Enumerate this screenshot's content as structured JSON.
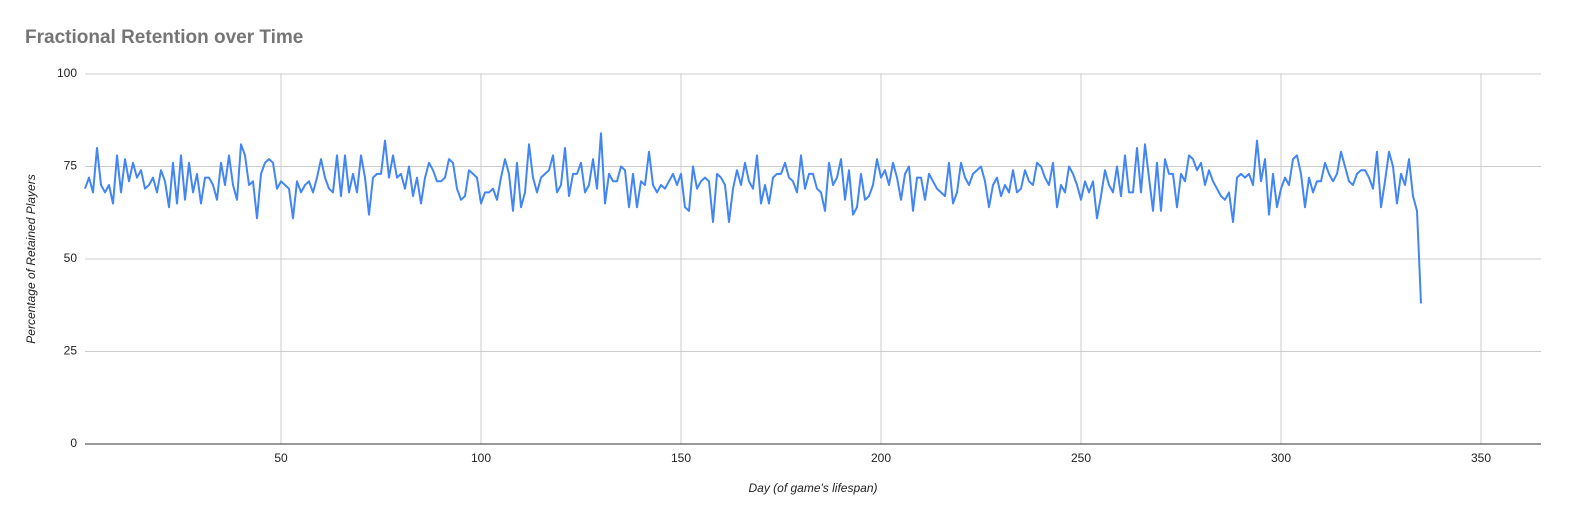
{
  "chart_data": {
    "type": "line",
    "title": "Fractional Retention over Time",
    "x_label": "Day (of game's lifespan)",
    "y_label": "Percentage of Retained Players",
    "color": "#4285f4",
    "grid": true,
    "xlim": [
      1,
      365
    ],
    "xticks": [
      50,
      100,
      150,
      200,
      250,
      300,
      350
    ],
    "ylim": [
      0,
      100
    ],
    "yticks": [
      0,
      25,
      50,
      75,
      100
    ],
    "x": [
      1,
      2,
      3,
      4,
      5,
      6,
      7,
      8,
      9,
      10,
      11,
      12,
      13,
      14,
      15,
      16,
      17,
      18,
      19,
      20,
      21,
      22,
      23,
      24,
      25,
      26,
      27,
      28,
      29,
      30,
      31,
      32,
      33,
      34,
      35,
      36,
      37,
      38,
      39,
      40,
      41,
      42,
      43,
      44,
      45,
      46,
      47,
      48,
      49,
      50,
      51,
      52,
      53,
      54,
      55,
      56,
      57,
      58,
      59,
      60,
      61,
      62,
      63,
      64,
      65,
      66,
      67,
      68,
      69,
      70,
      71,
      72,
      73,
      74,
      75,
      76,
      77,
      78,
      79,
      80,
      81,
      82,
      83,
      84,
      85,
      86,
      87,
      88,
      89,
      90,
      91,
      92,
      93,
      94,
      95,
      96,
      97,
      98,
      99,
      100,
      101,
      102,
      103,
      104,
      105,
      106,
      107,
      108,
      109,
      110,
      111,
      112,
      113,
      114,
      115,
      116,
      117,
      118,
      119,
      120,
      121,
      122,
      123,
      124,
      125,
      126,
      127,
      128,
      129,
      130,
      131,
      132,
      133,
      134,
      135,
      136,
      137,
      138,
      139,
      140,
      141,
      142,
      143,
      144,
      145,
      146,
      147,
      148,
      149,
      150,
      151,
      152,
      153,
      154,
      155,
      156,
      157,
      158,
      159,
      160,
      161,
      162,
      163,
      164,
      165,
      166,
      167,
      168,
      169,
      170,
      171,
      172,
      173,
      174,
      175,
      176,
      177,
      178,
      179,
      180,
      181,
      182,
      183,
      184,
      185,
      186,
      187,
      188,
      189,
      190,
      191,
      192,
      193,
      194,
      195,
      196,
      197,
      198,
      199,
      200,
      201,
      202,
      203,
      204,
      205,
      206,
      207,
      208,
      209,
      210,
      211,
      212,
      213,
      214,
      215,
      216,
      217,
      218,
      219,
      220,
      221,
      222,
      223,
      224,
      225,
      226,
      227,
      228,
      229,
      230,
      231,
      232,
      233,
      234,
      235,
      236,
      237,
      238,
      239,
      240,
      241,
      242,
      243,
      244,
      245,
      246,
      247,
      248,
      249,
      250,
      251,
      252,
      253,
      254,
      255,
      256,
      257,
      258,
      259,
      260,
      261,
      262,
      263,
      264,
      265,
      266,
      267,
      268,
      269,
      270,
      271,
      272,
      273,
      274,
      275,
      276,
      277,
      278,
      279,
      280,
      281,
      282,
      283,
      284,
      285,
      286,
      287,
      288,
      289,
      290,
      291,
      292,
      293,
      294,
      295,
      296,
      297,
      298,
      299,
      300,
      301,
      302,
      303,
      304,
      305,
      306,
      307,
      308,
      309,
      310,
      311,
      312,
      313,
      314,
      315,
      316,
      317,
      318,
      319,
      320,
      321,
      322,
      323,
      324,
      325,
      326,
      327,
      328,
      329,
      330,
      331,
      332,
      333,
      334,
      335
    ],
    "values": [
      69,
      72,
      68,
      80,
      70,
      68,
      70,
      65,
      78,
      68,
      77,
      71,
      76,
      72,
      74,
      69,
      70,
      72,
      68,
      74,
      71,
      64,
      76,
      65,
      78,
      66,
      76,
      68,
      73,
      65,
      72,
      72,
      70,
      66,
      76,
      70,
      78,
      70,
      66,
      81,
      78,
      70,
      71,
      61,
      73,
      76,
      77,
      76,
      69,
      71,
      70,
      69,
      61,
      71,
      68,
      70,
      71,
      68,
      72,
      77,
      72,
      69,
      68,
      78,
      67,
      78,
      68,
      73,
      68,
      78,
      72,
      62,
      72,
      73,
      73,
      82,
      72,
      78,
      72,
      73,
      69,
      75,
      67,
      72,
      65,
      72,
      76,
      74,
      71,
      71,
      72,
      77,
      76,
      69,
      66,
      67,
      74,
      73,
      72,
      65,
      68,
      68,
      69,
      66,
      72,
      77,
      73,
      63,
      76,
      64,
      68,
      81,
      72,
      68,
      72,
      73,
      74,
      78,
      68,
      70,
      80,
      67,
      73,
      73,
      76,
      68,
      70,
      77,
      69,
      84,
      65,
      73,
      71,
      71,
      75,
      74,
      64,
      73,
      64,
      71,
      70,
      79,
      70,
      68,
      70,
      69,
      71,
      73,
      70,
      73,
      64,
      63,
      75,
      69,
      71,
      72,
      71,
      60,
      73,
      72,
      70,
      60,
      69,
      74,
      70,
      76,
      71,
      69,
      78,
      65,
      70,
      65,
      72,
      73,
      73,
      76,
      72,
      71,
      68,
      78,
      69,
      73,
      73,
      69,
      68,
      63,
      76,
      70,
      72,
      77,
      66,
      74,
      62,
      64,
      73,
      66,
      67,
      70,
      77,
      72,
      74,
      70,
      76,
      72,
      66,
      73,
      75,
      63,
      72,
      72,
      66,
      73,
      71,
      69,
      68,
      67,
      76,
      65,
      68,
      76,
      72,
      70,
      73,
      74,
      75,
      71,
      64,
      70,
      72,
      67,
      70,
      68,
      74,
      68,
      69,
      74,
      71,
      70,
      76,
      75,
      72,
      70,
      76,
      64,
      70,
      68,
      75,
      73,
      70,
      66,
      71,
      68,
      71,
      61,
      67,
      74,
      70,
      68,
      75,
      67,
      78,
      68,
      68,
      80,
      68,
      81,
      72,
      63,
      76,
      63,
      77,
      73,
      73,
      64,
      73,
      71,
      78,
      77,
      74,
      76,
      70,
      74,
      71,
      69,
      67,
      66,
      68,
      60,
      72,
      73,
      72,
      73,
      70,
      82,
      71,
      77,
      62,
      73,
      64,
      69,
      72,
      70,
      77,
      78,
      73,
      64,
      72,
      68,
      71,
      71,
      76,
      73,
      71,
      73,
      79,
      75,
      71,
      70,
      73,
      74,
      74,
      72,
      69,
      79,
      64,
      71,
      79,
      75,
      65,
      73,
      70,
      77,
      67,
      63,
      38
    ]
  }
}
